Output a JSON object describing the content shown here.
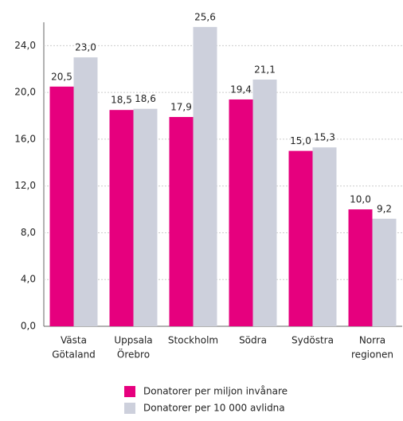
{
  "chart_data": {
    "type": "bar",
    "categories": [
      [
        "Västa",
        "Götaland"
      ],
      [
        "Uppsala",
        "Örebro"
      ],
      [
        "Stockholm"
      ],
      [
        "Södra"
      ],
      [
        "Sydöstra"
      ],
      [
        "Norra",
        "regionen"
      ]
    ],
    "series": [
      {
        "name": "Donatorer per miljon invånare",
        "color": "#e6007e",
        "values": [
          20.5,
          18.5,
          17.9,
          19.4,
          15.0,
          10.0
        ],
        "value_labels": [
          "20,5",
          "18,5",
          "17,9",
          "19,4",
          "15,0",
          "10,0"
        ]
      },
      {
        "name": "Donatorer per 10 000 avlidna",
        "color": "#cdd0dc",
        "values": [
          23.0,
          18.6,
          25.6,
          21.1,
          15.3,
          9.2
        ],
        "value_labels": [
          "23,0",
          "18,6",
          "25,6",
          "21,1",
          "15,3",
          "9,2"
        ]
      }
    ],
    "ylim": [
      0,
      26
    ],
    "yticks": [
      {
        "value": 0,
        "label": "0,0"
      },
      {
        "value": 4,
        "label": "4,0"
      },
      {
        "value": 8,
        "label": "8,0"
      },
      {
        "value": 12,
        "label": "12,0"
      },
      {
        "value": 16,
        "label": "16,0"
      },
      {
        "value": 20,
        "label": "20,0"
      },
      {
        "value": 24,
        "label": "24,0"
      }
    ],
    "grid": true
  }
}
